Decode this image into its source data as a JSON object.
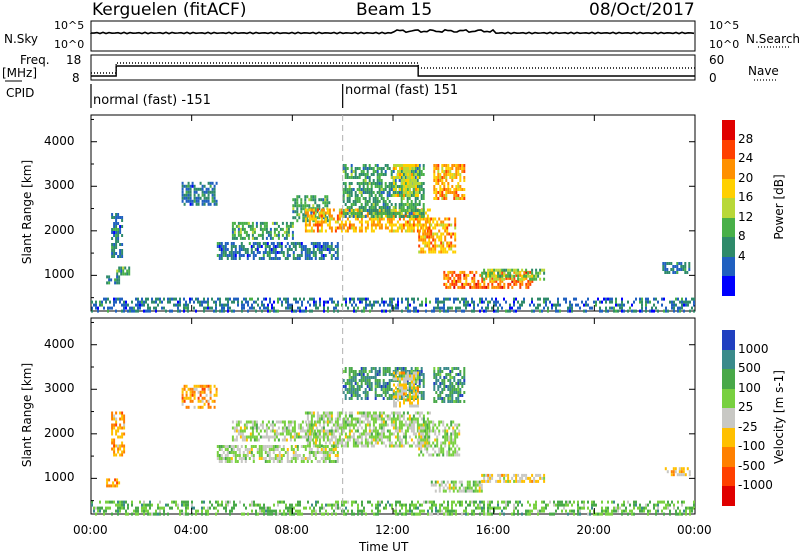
{
  "header": {
    "station": "Kerguelen (fitACF)",
    "beam": "Beam 15",
    "date": "08/Oct/2017"
  },
  "status_panels": {
    "noise": {
      "left_label": "N.Sky",
      "right_label": "N.Search",
      "left_ticks": [
        "10^5",
        "10^0"
      ],
      "right_ticks": [
        "10^5",
        "10^0"
      ]
    },
    "freq": {
      "left_label_line1": "Freq.",
      "left_label_line2": "[MHz]",
      "left_ticks": [
        "18",
        "8"
      ],
      "right_label": "Nave",
      "right_ticks": [
        "60",
        "0"
      ]
    },
    "cpid": {
      "label": "CPID",
      "segments": [
        {
          "text": "normal (fast) -151",
          "start_hour": 0
        },
        {
          "text": "normal (fast) 151",
          "start_hour": 10
        }
      ]
    }
  },
  "chart_data": [
    {
      "type": "heatmap",
      "name": "power",
      "ylabel": "Slant Range [km]",
      "xlabel": "Time UT",
      "xlim": [
        0,
        24
      ],
      "ylim": [
        200,
        4600
      ],
      "x_ticks": [
        "00:00",
        "04:00",
        "08:00",
        "12:00",
        "16:00",
        "20:00",
        "00:00"
      ],
      "x_tick_hours": [
        0,
        4,
        8,
        12,
        16,
        20,
        24
      ],
      "y_ticks": [
        1000,
        2000,
        3000,
        4000
      ],
      "vline_hour": 10,
      "colorbar": {
        "label": "Power [dB]",
        "ticks": [
          "28",
          "24",
          "20",
          "16",
          "12",
          "8",
          "4"
        ],
        "colors": [
          "#e00000",
          "#ff4000",
          "#ff9000",
          "#ffd000",
          "#b8d838",
          "#48b048",
          "#2e8a6a",
          "#2060c0",
          "#0000ff"
        ]
      },
      "echo_regions": [
        {
          "t0": 0.6,
          "t1": 1.1,
          "r0": 850,
          "r1": 1000,
          "level": 7
        },
        {
          "t0": 1.0,
          "t1": 1.5,
          "r0": 1000,
          "r1": 1200,
          "level": 6
        },
        {
          "t0": 0.8,
          "t1": 1.2,
          "r0": 1450,
          "r1": 2400,
          "level": 7
        },
        {
          "t0": 3.6,
          "t1": 5.0,
          "r0": 2600,
          "r1": 3100,
          "level": 7
        },
        {
          "t0": 5.0,
          "t1": 9.8,
          "r0": 1350,
          "r1": 1750,
          "level": 7
        },
        {
          "t0": 5.6,
          "t1": 8.0,
          "r0": 1850,
          "r1": 2200,
          "level": 6
        },
        {
          "t0": 8.0,
          "t1": 9.5,
          "r0": 2200,
          "r1": 2800,
          "level": 6
        },
        {
          "t0": 8.5,
          "t1": 13.5,
          "r0": 2000,
          "r1": 2500,
          "level": 3
        },
        {
          "t0": 10.0,
          "t1": 13.2,
          "r0": 2300,
          "r1": 3500,
          "level": 6
        },
        {
          "t0": 12.0,
          "t1": 13.0,
          "r0": 2800,
          "r1": 3500,
          "level": 4
        },
        {
          "t0": 13.0,
          "t1": 14.5,
          "r0": 1500,
          "r1": 2300,
          "level": 3
        },
        {
          "t0": 13.6,
          "t1": 14.8,
          "r0": 2700,
          "r1": 3500,
          "level": 3
        },
        {
          "t0": 14.0,
          "t1": 17.5,
          "r0": 700,
          "r1": 1100,
          "level": 2
        },
        {
          "t0": 15.5,
          "t1": 18.0,
          "r0": 900,
          "r1": 1150,
          "level": 5
        },
        {
          "t0": 22.7,
          "t1": 23.8,
          "r0": 1050,
          "r1": 1300,
          "level": 7
        },
        {
          "t0": 0.0,
          "t1": 24.0,
          "r0": 200,
          "r1": 500,
          "level": 7
        }
      ]
    },
    {
      "type": "heatmap",
      "name": "velocity",
      "ylabel": "Slant Range [km]",
      "xlabel": "Time UT",
      "xlim": [
        0,
        24
      ],
      "ylim": [
        200,
        4600
      ],
      "x_ticks": [
        "00:00",
        "04:00",
        "08:00",
        "12:00",
        "16:00",
        "20:00",
        "00:00"
      ],
      "x_tick_hours": [
        0,
        4,
        8,
        12,
        16,
        20,
        24
      ],
      "y_ticks": [
        1000,
        2000,
        3000,
        4000
      ],
      "vline_hour": 10,
      "colorbar": {
        "label": "Velocity [m s-1]",
        "ticks": [
          "1000",
          "500",
          "100",
          "25",
          "-25",
          "-100",
          "-500",
          "-1000"
        ],
        "colors": [
          "#2040c0",
          "#3a8a8a",
          "#48a848",
          "#78d040",
          "#c8c8c4",
          "#ffc000",
          "#ff8000",
          "#ff4000",
          "#e00000"
        ]
      },
      "echo_regions": [
        {
          "t0": 0.6,
          "t1": 1.1,
          "r0": 850,
          "r1": 1000,
          "level": 6
        },
        {
          "t0": 0.8,
          "t1": 1.3,
          "r0": 1500,
          "r1": 2500,
          "level": 6
        },
        {
          "t0": 3.6,
          "t1": 5.0,
          "r0": 2600,
          "r1": 3100,
          "level": 6
        },
        {
          "t0": 5.0,
          "t1": 9.8,
          "r0": 1350,
          "r1": 1750,
          "level": 4
        },
        {
          "t0": 5.6,
          "t1": 9.0,
          "r0": 1850,
          "r1": 2300,
          "level": 4
        },
        {
          "t0": 8.5,
          "t1": 13.5,
          "r0": 1700,
          "r1": 2500,
          "level": 4
        },
        {
          "t0": 10.0,
          "t1": 13.2,
          "r0": 2800,
          "r1": 3500,
          "level": 2
        },
        {
          "t0": 12.0,
          "t1": 13.0,
          "r0": 2600,
          "r1": 3400,
          "level": 5
        },
        {
          "t0": 13.6,
          "t1": 14.8,
          "r0": 2700,
          "r1": 3500,
          "level": 2
        },
        {
          "t0": 13.0,
          "t1": 14.6,
          "r0": 1500,
          "r1": 2300,
          "level": 4
        },
        {
          "t0": 13.5,
          "t1": 15.5,
          "r0": 700,
          "r1": 950,
          "level": 4
        },
        {
          "t0": 15.5,
          "t1": 18.0,
          "r0": 900,
          "r1": 1100,
          "level": 5
        },
        {
          "t0": 22.8,
          "t1": 23.8,
          "r0": 1100,
          "r1": 1250,
          "level": 5
        },
        {
          "t0": 0.0,
          "t1": 24.0,
          "r0": 200,
          "r1": 500,
          "level": 3
        }
      ]
    }
  ]
}
